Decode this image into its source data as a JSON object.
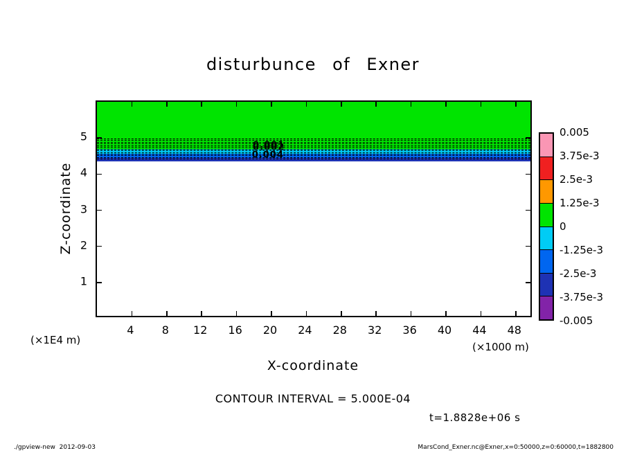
{
  "title": "disturbunce of Exner",
  "axes": {
    "x_label": "X-coordinate",
    "x_unit": "(×1000 m)",
    "y_label": "Z-coordinate",
    "y_unit": "(×1E4 m)"
  },
  "colorbar": {
    "labels": [
      "0.005",
      "3.75e-3",
      "2.5e-3",
      "1.25e-3",
      "0",
      "-1.25e-3",
      "-2.5e-3",
      "-3.75e-3",
      "-0.005"
    ],
    "colors": [
      "#fa96b4",
      "#f02020",
      "#ff9800",
      "#00e400",
      "#00ccf5",
      "#0066f0",
      "#1e32b4",
      "#8223a8"
    ]
  },
  "annotations": {
    "contour_interval": "CONTOUR INTERVAL = 5.000E-04",
    "time": "t=1.8828e+06 s",
    "footer_left": "./gpview-new  2012-09-03",
    "footer_right": "MarsCond_Exner.nc@Exner,x=0:50000,z=0:60000,t=1882800"
  },
  "chart_data": {
    "type": "heatmap",
    "title": "disturbunce of Exner",
    "xlabel": "X-coordinate",
    "x_unit": "×1000 m",
    "ylabel": "Z-coordinate",
    "y_unit": "×1E4 m",
    "x_range": [
      0,
      50
    ],
    "z_range": [
      0,
      6
    ],
    "x_ticks": [
      4,
      8,
      12,
      16,
      20,
      24,
      28,
      32,
      36,
      40,
      44,
      48
    ],
    "y_ticks": [
      1,
      2,
      3,
      4,
      5
    ],
    "contour_interval": 0.0005,
    "time_seconds": 1882800,
    "colorbar_levels": [
      -0.005,
      -0.00375,
      -0.0025,
      -0.00125,
      0,
      0.00125,
      0.0025,
      0.00375,
      0.005
    ],
    "bands": [
      {
        "value_range": "0 to 1.25e-3",
        "color": "#00e400",
        "z_from": 4.68,
        "z_to": 6.0
      },
      {
        "value_range": "-1.25e-3 to 0",
        "color": "#00ccf5",
        "z_from": 4.56,
        "z_to": 4.68
      },
      {
        "value_range": "-2.5e-3 to -1.25e-3",
        "color": "#0066f0",
        "z_from": 4.45,
        "z_to": 4.56
      },
      {
        "value_range": "-3.75e-3 to -2.5e-3",
        "color": "#1e32b4",
        "z_from": 4.36,
        "z_to": 4.45
      }
    ],
    "contour_band": {
      "z_top": 4.99,
      "z_bottom": 4.42,
      "n_lines": 13
    },
    "contour_labels": [
      {
        "text": "0.001",
        "x": 19.7,
        "z": 4.8
      },
      {
        "text": "0.002",
        "x": 19.7,
        "z": 4.73
      },
      {
        "text": "0.004",
        "x": 19.6,
        "z": 4.53
      }
    ]
  }
}
